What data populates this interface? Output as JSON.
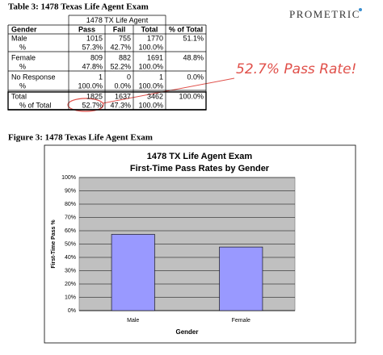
{
  "logo": "PROMETRIC",
  "table": {
    "caption": "Table 3: 1478 Texas Life Agent Exam",
    "group_header": "1478 TX Life Agent",
    "columns": [
      "Gender",
      "Pass",
      "Fail",
      "Total",
      "% of Total"
    ],
    "rows": [
      [
        "Male",
        "1015",
        "755",
        "1770",
        "51.1%"
      ],
      [
        "%",
        "57.3%",
        "42.7%",
        "100.0%",
        null
      ],
      [
        "Female",
        "809",
        "882",
        "1691",
        "48.8%"
      ],
      [
        "%",
        "47.8%",
        "52.2%",
        "100.0%",
        null
      ],
      [
        "No Response",
        "1",
        "0",
        "1",
        "0.0%"
      ],
      [
        "%",
        "100.0%",
        "0.0%",
        "100.0%",
        null
      ],
      [
        "Total",
        "1825",
        "1637",
        "3462",
        "100.0%"
      ],
      [
        "% of Total",
        "52.7%",
        "47.3%",
        "100.0%",
        null
      ]
    ]
  },
  "annotation": "52.7% Pass Rate!",
  "figure_caption": "Figure 3: 1478 Texas Life Agent Exam",
  "chart_data": {
    "type": "bar",
    "title": [
      "1478 TX Life Agent Exam",
      "First-Time Pass Rates by Gender"
    ],
    "categories": [
      "Male",
      "Female"
    ],
    "values": [
      57.3,
      47.8
    ],
    "color": "#9999ff",
    "x_label": "Gender",
    "y_label": "First-Time Pass %",
    "ylim": [
      0,
      100
    ],
    "yticks": [
      {
        "value": 0,
        "label": "0%"
      },
      {
        "value": 10,
        "label": "10%"
      },
      {
        "value": 20,
        "label": "20%"
      },
      {
        "value": 30,
        "label": "30%"
      },
      {
        "value": 40,
        "label": "40%"
      },
      {
        "value": 50,
        "label": "50%"
      },
      {
        "value": 60,
        "label": "60%"
      },
      {
        "value": 70,
        "label": "70%"
      },
      {
        "value": 80,
        "label": "80%"
      },
      {
        "value": 90,
        "label": "90%"
      },
      {
        "value": 100,
        "label": "100%"
      }
    ],
    "grid": true
  }
}
